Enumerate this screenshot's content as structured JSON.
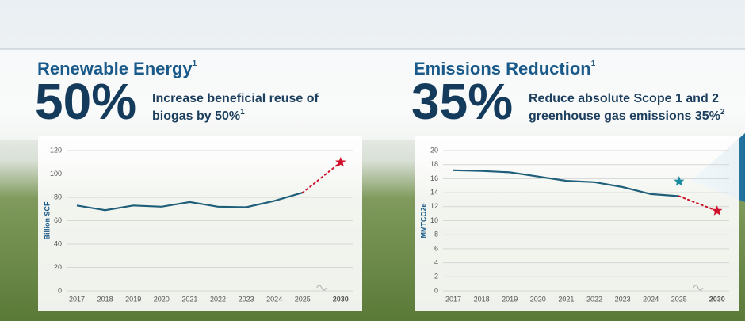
{
  "chart_data": [
    {
      "type": "line",
      "title": "Renewable Energy",
      "title_note": "1",
      "headline": "50%",
      "description": [
        "Increase beneficial reuse of",
        "biogas by 50%"
      ],
      "description_note": "1",
      "y_label": "Billion SCF",
      "categories": [
        "2017",
        "2018",
        "2019",
        "2020",
        "2021",
        "2022",
        "2023",
        "2024",
        "2025",
        "2030"
      ],
      "series": [
        {
          "color": "#1f5f7a",
          "values": [
            73,
            69,
            73,
            72,
            76,
            72,
            71.5,
            77,
            84,
            null
          ]
        },
        {
          "color": "#d0112b",
          "marker": "star",
          "linestyle": "dotted",
          "values": [
            null,
            null,
            null,
            null,
            null,
            null,
            null,
            null,
            null,
            110
          ]
        }
      ],
      "ylim": [
        0,
        120
      ],
      "yticks": [
        0,
        20,
        40,
        60,
        80,
        100,
        120
      ],
      "grid": true
    },
    {
      "type": "line",
      "title": "Emissions Reduction",
      "title_note": "1",
      "headline": "35%",
      "description": [
        "Reduce absolute Scope 1 and 2",
        "greenhouse gas emissions 35%"
      ],
      "description_note": "2",
      "y_label": "MMTCO2e",
      "categories": [
        "2017",
        "2018",
        "2019",
        "2020",
        "2021",
        "2022",
        "2023",
        "2024",
        "2025",
        "2030"
      ],
      "series": [
        {
          "color": "#1f5f7a",
          "values": [
            17.2,
            17.1,
            16.9,
            16.3,
            15.7,
            15.5,
            14.8,
            13.8,
            13.5,
            null
          ]
        },
        {
          "color": "#1a8aa0",
          "marker": "star",
          "values": [
            null,
            null,
            null,
            null,
            null,
            null,
            null,
            null,
            15.6,
            null
          ]
        },
        {
          "color": "#d0112b",
          "marker": "star",
          "linestyle": "dotted",
          "values": [
            null,
            null,
            null,
            null,
            null,
            null,
            null,
            null,
            null,
            11.4
          ]
        }
      ],
      "ylim": [
        0,
        20
      ],
      "yticks": [
        0,
        2,
        4,
        6,
        8,
        10,
        12,
        14,
        16,
        18,
        20
      ],
      "grid": true
    }
  ]
}
